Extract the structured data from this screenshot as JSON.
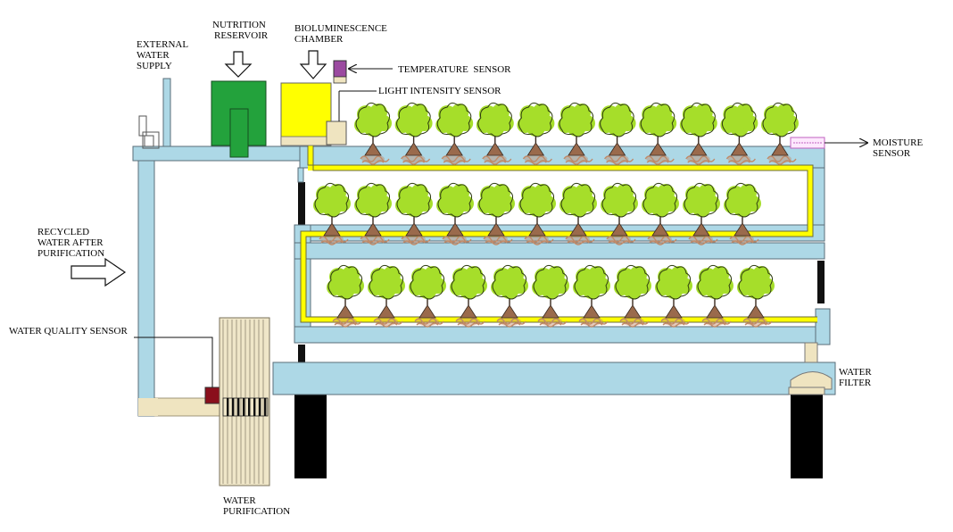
{
  "labels": {
    "nutrition_reservoir": [
      "NUTRITION",
      "RESERVOIR"
    ],
    "bioluminescence_chamber": [
      "BIOLUMINESCENCE",
      "CHAMBER"
    ],
    "external_water_supply": [
      "EXTERNAL",
      "WATER",
      "SUPPLY"
    ],
    "temperature_sensor": "TEMPERATURE  SENSOR",
    "light_intensity_sensor": "LIGHT INTENSITY SENSOR",
    "moisture_sensor": [
      "MOISTURE",
      "SENSOR"
    ],
    "recycled_water": [
      "RECYCLED",
      "WATER AFTER",
      "PURIFICATION"
    ],
    "water_quality_sensor": "WATER QUALITY SENSOR",
    "water_filter": [
      "WATER",
      "FILTER"
    ],
    "water_purification": [
      "WATER",
      "PURIFICATION"
    ]
  },
  "colors": {
    "pipe": "#add8e6",
    "pipe_outline": "#5a6e78",
    "light_strip": "#ffff00",
    "nutrition_reservoir": "#23a23c",
    "bioluminescence_chamber": "#ffff00",
    "plant_foliage": "#a6de2a",
    "plant_roots": "#c08a68",
    "plant_pot": "#9a6a4c",
    "legs": "#000000",
    "sensor_purple": "#9b4aa0",
    "sensor_beige": "#efe4c0",
    "water_quality_sensor": "#8a0f1c",
    "purification_unit": "#efe6c8",
    "moisture_sensor": "#c060c0"
  },
  "tiers": [
    {
      "name": "top",
      "plant_count": 11
    },
    {
      "name": "middle",
      "plant_count": 11
    },
    {
      "name": "bottom",
      "plant_count": 11
    }
  ]
}
